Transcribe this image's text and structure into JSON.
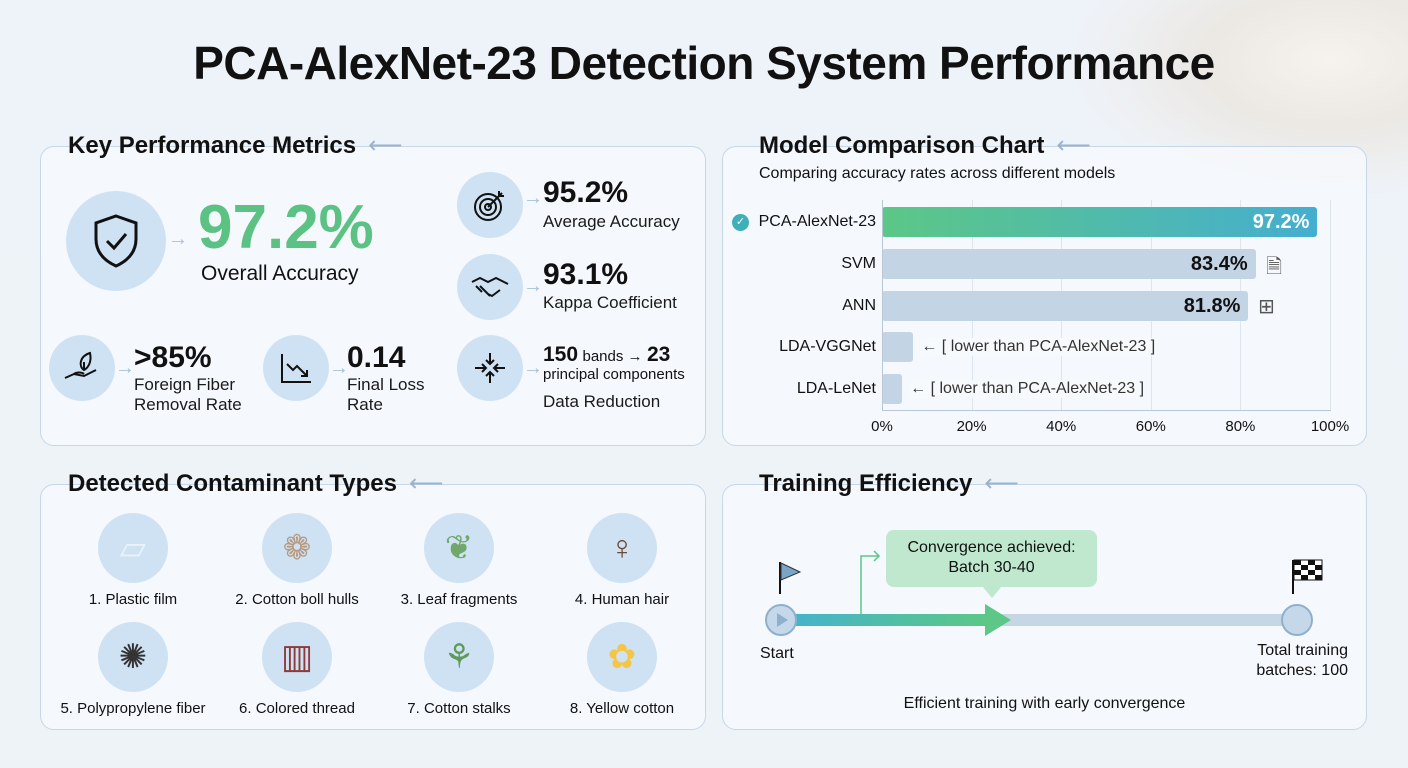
{
  "title": "PCA-AlexNet-23 Detection System Performance",
  "metrics": {
    "heading": "Key Performance Metrics",
    "overall": {
      "value": "97.2%",
      "label": "Overall Accuracy",
      "icon": "shield-check-icon"
    },
    "average": {
      "value": "95.2%",
      "label": "Average Accuracy",
      "icon": "target-icon"
    },
    "kappa": {
      "value": "93.1%",
      "label": "Kappa Coefficient",
      "icon": "handshake-icon"
    },
    "removal": {
      "value": ">85%",
      "label1": "Foreign Fiber",
      "label2": "Removal Rate",
      "icon": "plant-hand-icon"
    },
    "loss": {
      "value": "0.14",
      "label1": "Final Loss",
      "label2": "Rate",
      "icon": "chart-down-icon"
    },
    "reduction": {
      "from": "150",
      "from_unit": "bands →",
      "to": "23",
      "to_unit": "principal components",
      "label": "Data Reduction",
      "icon": "compress-icon"
    },
    "accent": "#5cc283"
  },
  "comparison": {
    "heading": "Model Comparison Chart",
    "subtitle": "Comparing accuracy rates across different models"
  },
  "chart_data": {
    "type": "bar",
    "orientation": "horizontal",
    "title": "Model Comparison Chart",
    "subtitle": "Comparing accuracy rates across different models",
    "categories": [
      "PCA-AlexNet-23",
      "SVM",
      "ANN",
      "LDA-VGGNet",
      "LDA-LeNet"
    ],
    "values": [
      97.2,
      83.4,
      81.8,
      7,
      4.5
    ],
    "data_labels": [
      "97.2%",
      "83.4%",
      "81.8%",
      "← [ lower than PCA-AlexNet-23 ]",
      "← [ lower than PCA-AlexNet-23 ]"
    ],
    "xlim": [
      0,
      100
    ],
    "xticks": [
      "0%",
      "20%",
      "40%",
      "60%",
      "80%",
      "100%"
    ],
    "grid": true,
    "highlight_color": "#5cc786",
    "bar_color": "#c3d4e4"
  },
  "contaminants": {
    "heading": "Detected Contaminant Types",
    "items": [
      {
        "label": "1. Plastic film",
        "icon": "plastic-bag-icon"
      },
      {
        "label": "2. Cotton boll hulls",
        "icon": "cotton-boll-icon"
      },
      {
        "label": "3. Leaf fragments",
        "icon": "leaf-icon"
      },
      {
        "label": "4. Human hair",
        "icon": "hair-icon"
      },
      {
        "label": "5. Polypropylene fiber",
        "icon": "fiber-tangle-icon"
      },
      {
        "label": "6. Colored thread",
        "icon": "thread-spool-icon"
      },
      {
        "label": "7. Cotton stalks",
        "icon": "stalk-icon"
      },
      {
        "label": "8. Yellow cotton",
        "icon": "yellow-cotton-icon"
      }
    ]
  },
  "training": {
    "heading": "Training Efficiency",
    "callout1": "Convergence achieved:",
    "callout2": "Batch 30-40",
    "start": "Start",
    "end1": "Total training",
    "end2": "batches: 100",
    "caption": "Efficient training with early convergence",
    "progress_fraction": 0.4
  }
}
